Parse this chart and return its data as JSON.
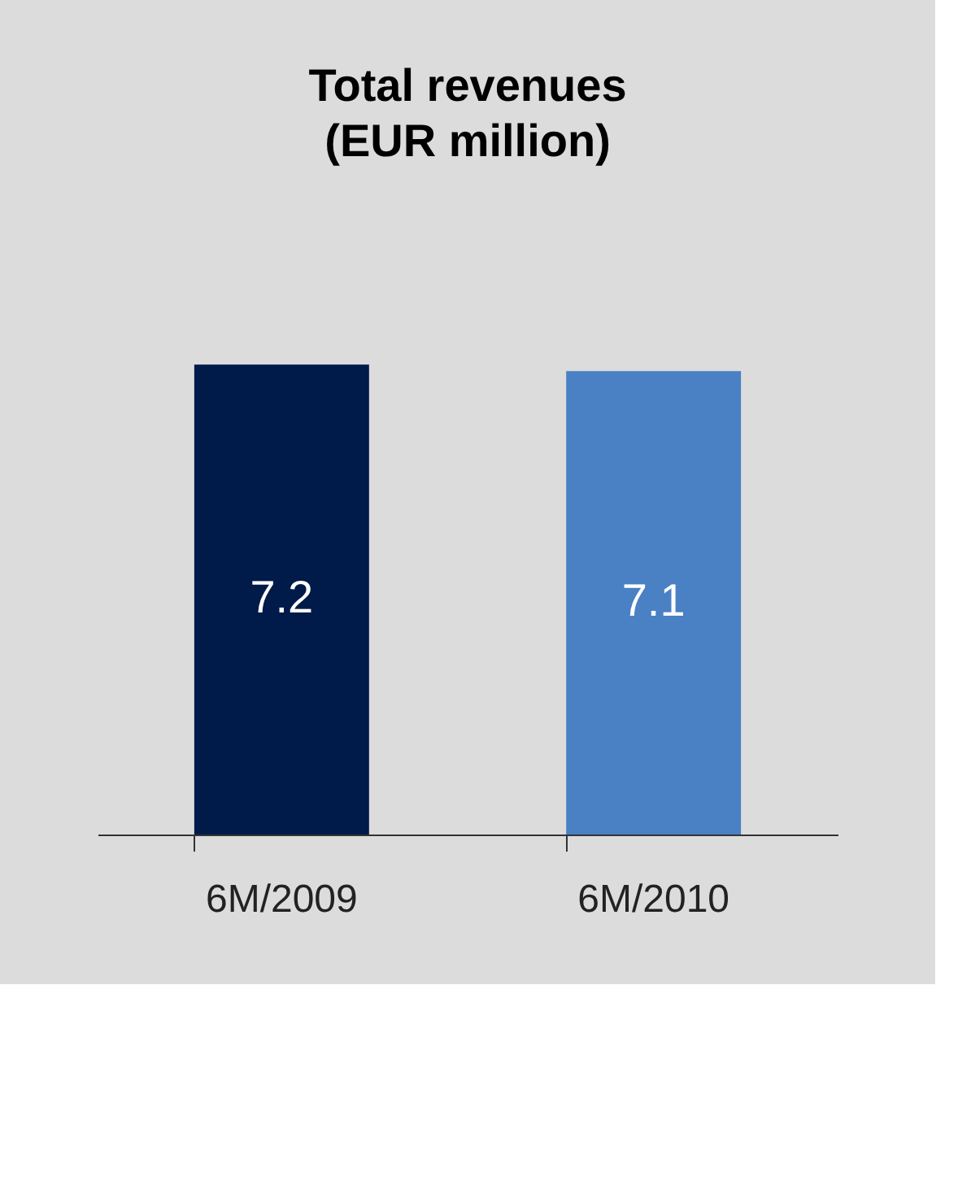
{
  "chart_data": {
    "type": "bar",
    "title": [
      "Total revenues",
      "(EUR million)"
    ],
    "categories": [
      "6M/2009",
      "6M/2010"
    ],
    "values": [
      7.2,
      7.1
    ],
    "colors": [
      "#001a4a",
      "#4a80c4"
    ],
    "data_labels": true
  }
}
